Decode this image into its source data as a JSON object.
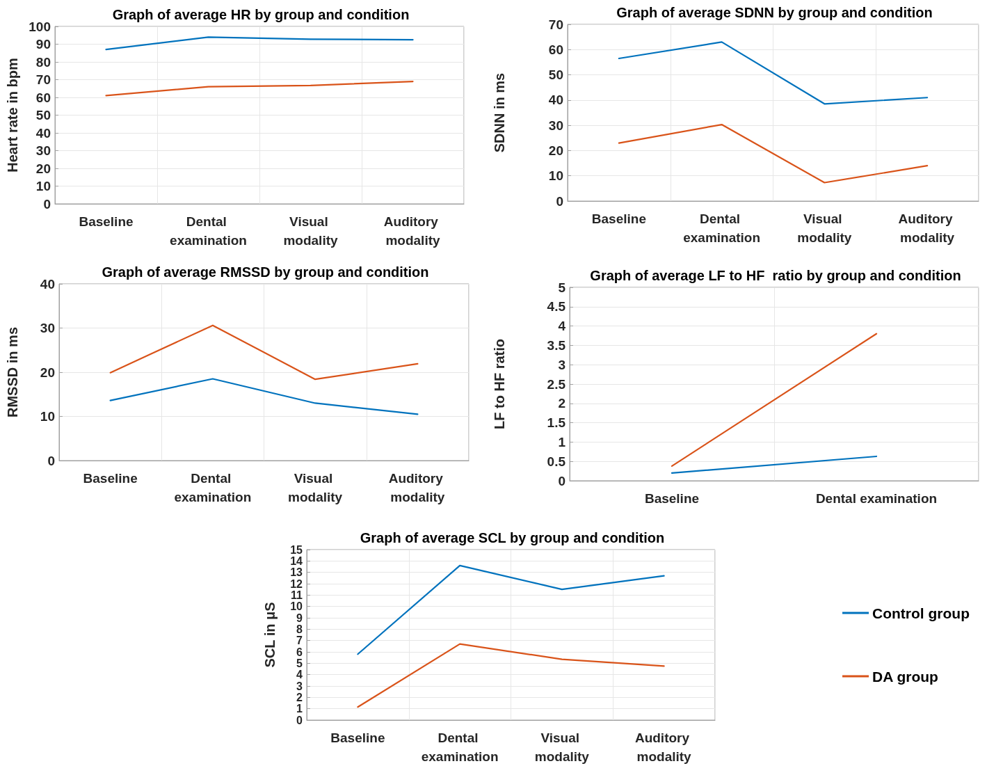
{
  "chart_data": [
    {
      "type": "line",
      "title": "Graph of average HR by group and condition",
      "ylabel": "Heart rate in bpm",
      "categories": [
        "Baseline",
        "Dental examination",
        "Visual modality",
        "Auditory modality"
      ],
      "series": [
        {
          "color": "#0072bd",
          "values": [
            87,
            94,
            92.8,
            92.5
          ]
        },
        {
          "color": "#d95319",
          "values": [
            61,
            66,
            66.7,
            69
          ]
        }
      ],
      "ylim": [
        0,
        100
      ],
      "yticks": [
        0,
        10,
        20,
        30,
        40,
        50,
        60,
        70,
        80,
        90,
        100
      ],
      "grid": true,
      "legend": false,
      "marker": "none",
      "line_style": "solid"
    },
    {
      "type": "line",
      "title": "Graph of average SDNN by group and condition",
      "ylabel": "SDNN in ms",
      "categories": [
        "Baseline",
        "Dental examination",
        "Visual modality",
        "Auditory modality"
      ],
      "series": [
        {
          "color": "#0072bd",
          "values": [
            56.5,
            63,
            38.5,
            41
          ]
        },
        {
          "color": "#d95319",
          "values": [
            23,
            30.3,
            7.3,
            14
          ]
        }
      ],
      "ylim": [
        0,
        70
      ],
      "yticks": [
        0,
        10,
        20,
        30,
        40,
        50,
        60,
        70
      ],
      "grid": true,
      "legend": false,
      "marker": "none",
      "line_style": "solid"
    },
    {
      "type": "line",
      "title": "Graph of average RMSSD by group and condition",
      "ylabel": "RMSSD in ms",
      "categories": [
        "Baseline",
        "Dental examination",
        "Visual modality",
        "Auditory modality"
      ],
      "series": [
        {
          "color": "#0072bd",
          "values": [
            13.6,
            18.5,
            13,
            10.5
          ]
        },
        {
          "color": "#d95319",
          "values": [
            19.9,
            30.6,
            18.4,
            21.9
          ]
        }
      ],
      "ylim": [
        0,
        40
      ],
      "yticks": [
        0,
        10,
        20,
        30,
        40
      ],
      "grid": true,
      "legend": false,
      "marker": "none",
      "line_style": "solid"
    },
    {
      "type": "line",
      "title": "Graph of average LF to HF  ratio by group and condition",
      "ylabel": "LF to HF ratio",
      "categories": [
        "Baseline",
        "Dental examination"
      ],
      "series": [
        {
          "color": "#0072bd",
          "values": [
            0.2,
            0.63
          ]
        },
        {
          "color": "#d95319",
          "values": [
            0.38,
            3.8
          ]
        }
      ],
      "ylim": [
        0,
        5
      ],
      "yticks": [
        0,
        0.5,
        1,
        1.5,
        2,
        2.5,
        3,
        3.5,
        4,
        4.5,
        5
      ],
      "grid": true,
      "legend": false,
      "marker": "none",
      "line_style": "solid"
    },
    {
      "type": "line",
      "title": "Graph of average SCL by group and condition",
      "ylabel": "SCL in μS",
      "categories": [
        "Baseline",
        "Dental examination",
        "Visual modality",
        "Auditory modality"
      ],
      "series": [
        {
          "name": "Control group",
          "color": "#0072bd",
          "values": [
            5.8,
            13.6,
            11.5,
            12.7
          ]
        },
        {
          "name": "DA group",
          "color": "#d95319",
          "values": [
            1.15,
            6.7,
            5.35,
            4.75
          ]
        }
      ],
      "ylim": [
        0,
        15
      ],
      "yticks": [
        0,
        1,
        2,
        3,
        4,
        5,
        6,
        7,
        8,
        9,
        10,
        11,
        12,
        13,
        14,
        15
      ],
      "grid": true,
      "legend": "right",
      "marker": "none",
      "line_style": "solid"
    }
  ]
}
